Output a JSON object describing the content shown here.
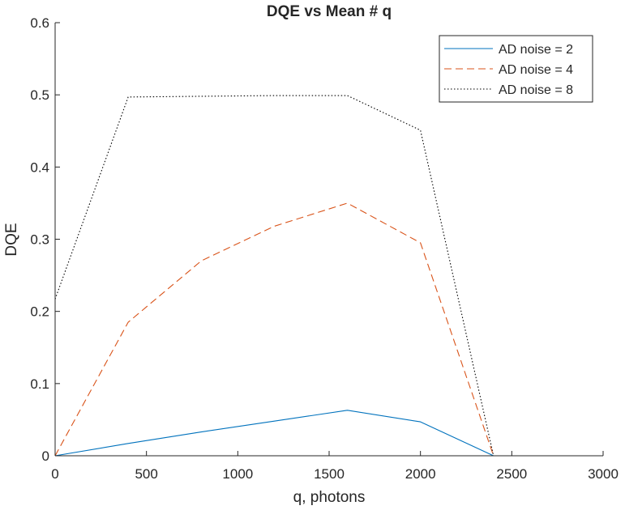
{
  "chart_data": {
    "type": "line",
    "title": "DQE vs Mean # q",
    "xlabel": "q, photons",
    "ylabel": "DQE",
    "xlim": [
      0,
      3000
    ],
    "ylim": [
      0,
      0.6
    ],
    "xticks": [
      0,
      500,
      1000,
      1500,
      2000,
      2500,
      3000
    ],
    "yticks": [
      0,
      0.1,
      0.2,
      0.3,
      0.4,
      0.5,
      0.6
    ],
    "xtick_labels": [
      "0",
      "500",
      "1000",
      "1500",
      "2000",
      "2500",
      "3000"
    ],
    "ytick_labels": [
      "0",
      "0.1",
      "0.2",
      "0.3",
      "0.4",
      "0.5",
      "0.6"
    ],
    "grid": false,
    "legend_position": "top-right",
    "series": [
      {
        "name": "AD noise = 2",
        "color": "#0072BD",
        "style": "solid",
        "x": [
          0,
          400,
          800,
          1200,
          1600,
          2000,
          2400,
          2800,
          3000
        ],
        "y": [
          0,
          0.017,
          0.033,
          0.048,
          0.063,
          0.047,
          0,
          0,
          0
        ]
      },
      {
        "name": "AD noise = 4",
        "color": "#D95319",
        "style": "dashed",
        "x": [
          0,
          400,
          800,
          1200,
          1600,
          2000,
          2400,
          2800,
          3000
        ],
        "y": [
          0,
          0.185,
          0.27,
          0.318,
          0.35,
          0.295,
          0,
          0,
          0
        ]
      },
      {
        "name": "AD noise = 8",
        "color": "#000000",
        "style": "dotted",
        "x": [
          0,
          400,
          800,
          1200,
          1600,
          2000,
          2400,
          2800,
          3000
        ],
        "y": [
          0.217,
          0.497,
          0.498,
          0.499,
          0.499,
          0.451,
          0,
          0,
          0
        ]
      }
    ]
  }
}
